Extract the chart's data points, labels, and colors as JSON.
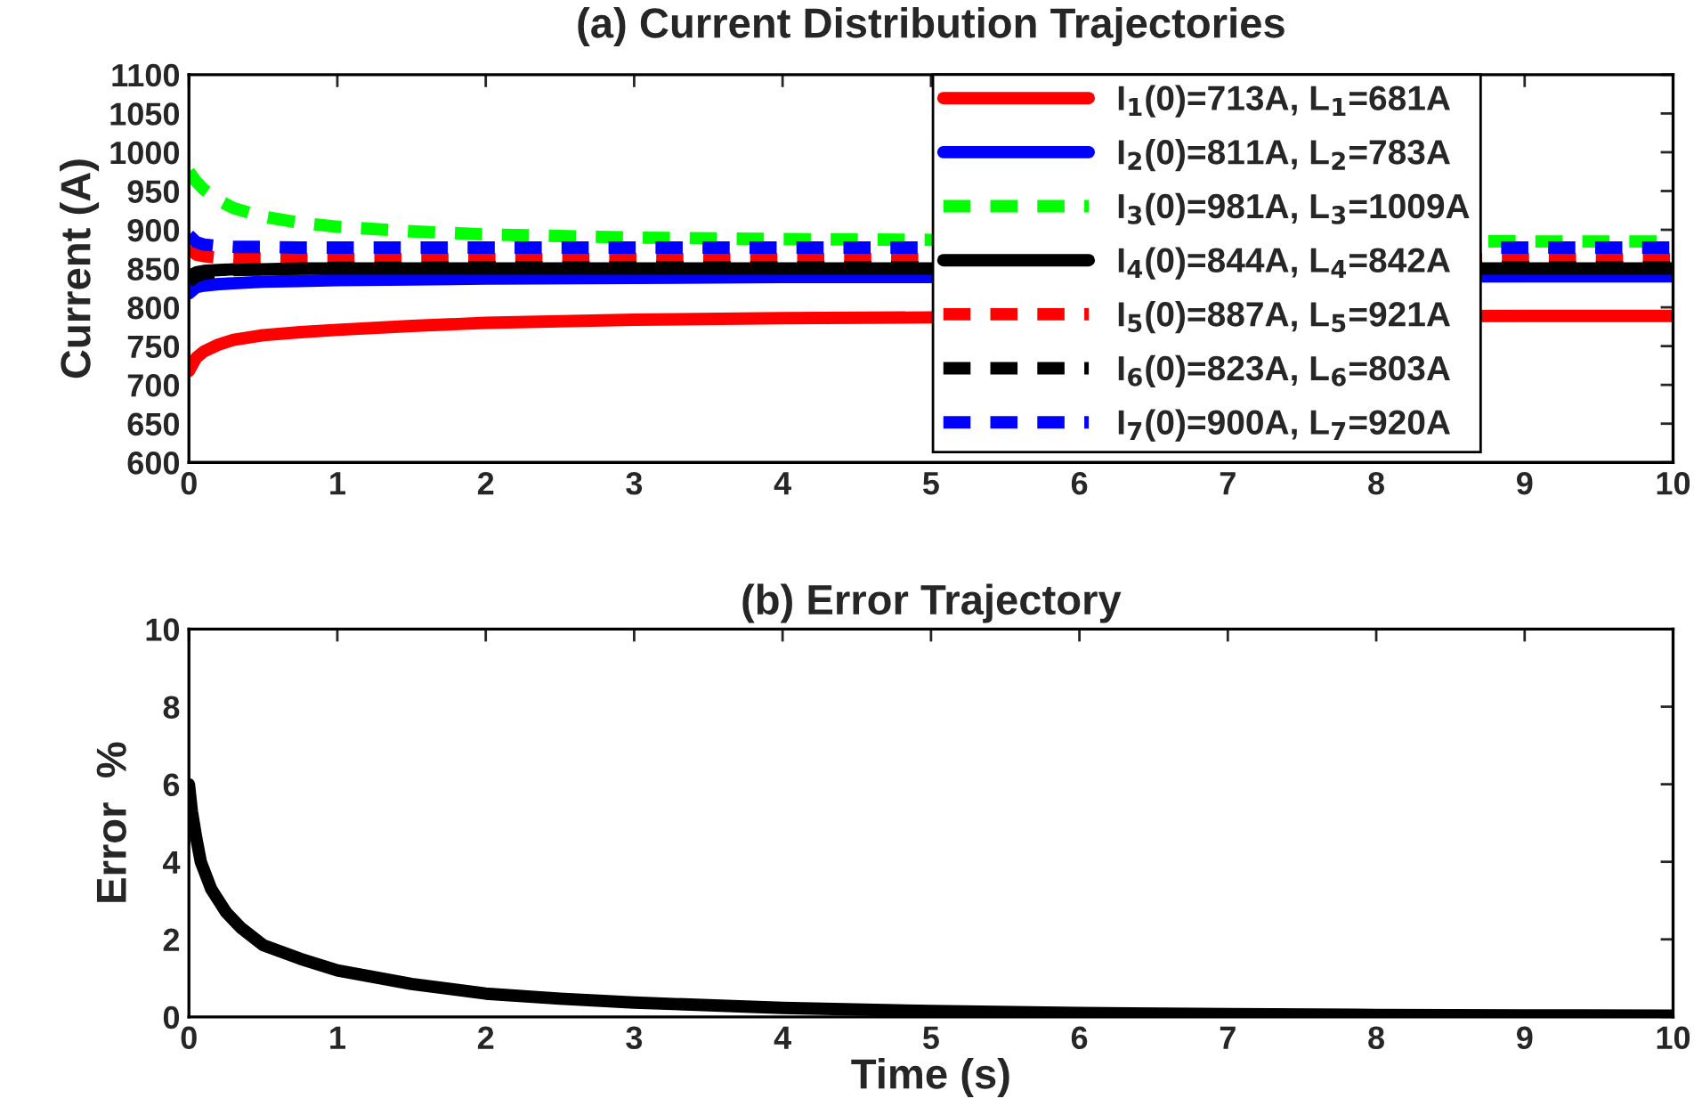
{
  "chart_data": [
    {
      "type": "line",
      "title": "(a) Current Distribution Trajectories",
      "ylabel": "Current (A)",
      "xlim": [
        0,
        10
      ],
      "ylim": [
        600,
        1100
      ],
      "xticks": [
        0,
        1,
        2,
        3,
        4,
        5,
        6,
        7,
        8,
        9,
        10
      ],
      "yticks": [
        600,
        650,
        700,
        750,
        800,
        850,
        900,
        950,
        1000,
        1050,
        1100
      ],
      "grid": false,
      "legend": "top right",
      "tick_labels": true,
      "x": [
        0,
        0.05,
        0.1,
        0.2,
        0.3,
        0.5,
        0.75,
        1,
        1.5,
        2,
        3,
        4,
        5,
        9,
        10
      ],
      "series": [
        {
          "name": "I$_{1}$(0)=713A, L$_{1}$=681A",
          "color": "#ff0000",
          "line_style": "solid",
          "values": [
            718,
            735,
            743,
            752,
            758,
            764,
            768,
            771,
            776,
            780,
            784,
            786,
            787,
            789,
            789
          ]
        },
        {
          "name": "I$_{2}$(0)=811A, L$_{2}$=783A",
          "color": "#0000ff",
          "line_style": "solid",
          "values": [
            818,
            826,
            828,
            830,
            831,
            833,
            834,
            835,
            836,
            837,
            838,
            839,
            839,
            840,
            840
          ]
        },
        {
          "name": "I$_{3}$(0)=981A, L$_{3}$=1009A",
          "color": "#00ff00",
          "line_style": "dashed",
          "values": [
            975,
            962,
            952,
            938,
            928,
            917,
            909,
            904,
            898,
            894,
            890,
            888,
            887,
            885,
            885
          ]
        },
        {
          "name": "I$_{4}$(0)=844A, L$_{4}$=842A",
          "color": "#000000",
          "line_style": "solid",
          "values": [
            840,
            845,
            847,
            848,
            849,
            849,
            850,
            850,
            850,
            850,
            850,
            850,
            850,
            850,
            850
          ]
        },
        {
          "name": "I$_{5}$(0)=887A, L$_{5}$=921A",
          "color": "#ff0000",
          "line_style": "dashed",
          "values": [
            876,
            868,
            866,
            864,
            863,
            863,
            862,
            862,
            862,
            862,
            862,
            862,
            862,
            862,
            862
          ]
        },
        {
          "name": "I$_{6}$(0)=823A, L$_{6}$=803A",
          "color": "#000000",
          "line_style": "dashed",
          "values": [
            833,
            840,
            843,
            846,
            848,
            849,
            850,
            851,
            851,
            852,
            852,
            852,
            852,
            852,
            852
          ]
        },
        {
          "name": "I$_{7}$(0)=900A, L$_{7}$=920A",
          "color": "#0000ff",
          "line_style": "dashed",
          "values": [
            893,
            884,
            881,
            879,
            878,
            878,
            877,
            877,
            877,
            877,
            877,
            877,
            877,
            877,
            877
          ]
        }
      ]
    },
    {
      "type": "line",
      "title": "(b) Error Trajectory",
      "xlabel": "Time (s)",
      "ylabel": "Error  %",
      "xlim": [
        0,
        10
      ],
      "ylim": [
        0,
        10
      ],
      "xticks": [
        0,
        1,
        2,
        3,
        4,
        5,
        6,
        7,
        8,
        9,
        10
      ],
      "yticks": [
        0,
        2,
        4,
        6,
        8,
        10
      ],
      "grid": false,
      "legend": false,
      "x": [
        0,
        0.02,
        0.05,
        0.08,
        0.15,
        0.25,
        0.35,
        0.5,
        0.75,
        1,
        1.5,
        2,
        2.5,
        3,
        4,
        5,
        6,
        7,
        8,
        9,
        10
      ],
      "series": [
        {
          "color": "#000000",
          "line_style": "solid",
          "values": [
            6.0,
            5.3,
            4.6,
            4.0,
            3.3,
            2.7,
            2.3,
            1.85,
            1.5,
            1.2,
            0.85,
            0.6,
            0.47,
            0.37,
            0.23,
            0.15,
            0.1,
            0.07,
            0.05,
            0.04,
            0.03
          ]
        }
      ]
    }
  ]
}
